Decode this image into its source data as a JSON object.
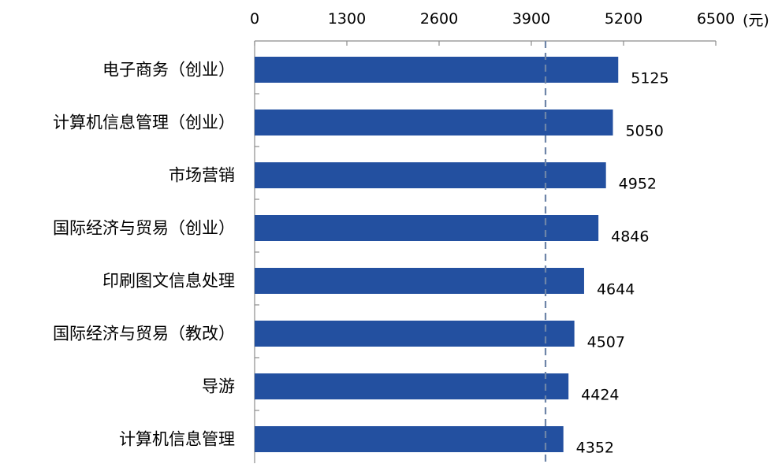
{
  "chart_data": {
    "type": "bar",
    "orientation": "horizontal",
    "categories": [
      "电子商务（创业）",
      "计算机信息管理（创业）",
      "市场营销",
      "国际经济与贸易（创业）",
      "印刷图文信息处理",
      "国际经济与贸易（教改）",
      "导游",
      "计算机信息管理"
    ],
    "values": [
      5125,
      5050,
      4952,
      4846,
      4644,
      4507,
      4424,
      4352
    ],
    "xlim": [
      0,
      6500
    ],
    "xticks": [
      0,
      1300,
      2600,
      3900,
      5200,
      6500
    ],
    "x_unit": "(元)",
    "reference_line": 4100,
    "bar_color": "#2350A0",
    "reference_line_color": "#6E85A8",
    "axis_position": "top",
    "grid": false,
    "legend": "none"
  }
}
